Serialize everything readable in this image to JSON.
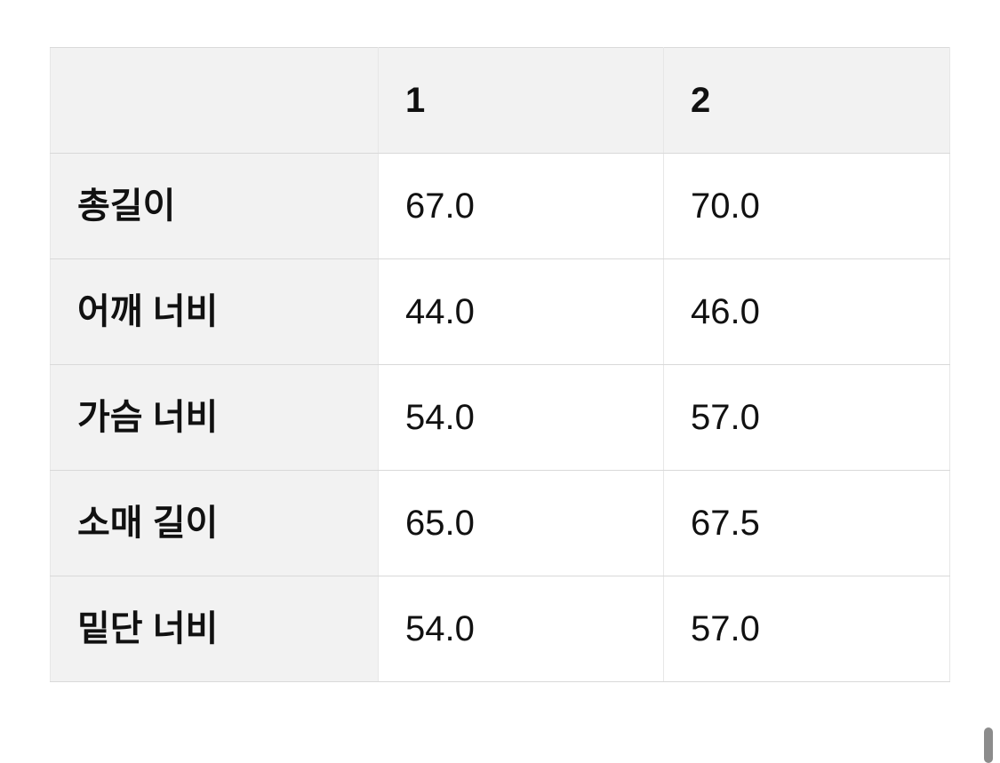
{
  "size_table": {
    "corner_label": "",
    "columns": [
      "1",
      "2"
    ],
    "rows": [
      {
        "label": "총길이",
        "values": [
          "67.0",
          "70.0"
        ]
      },
      {
        "label": "어깨 너비",
        "values": [
          "44.0",
          "46.0"
        ]
      },
      {
        "label": "가슴 너비",
        "values": [
          "54.0",
          "57.0"
        ]
      },
      {
        "label": "소매 길이",
        "values": [
          "65.0",
          "67.5"
        ]
      },
      {
        "label": "밑단 너비",
        "values": [
          "54.0",
          "57.0"
        ]
      }
    ],
    "header_bg": "#f2f2f2",
    "row_header_bg": "#f2f2f2",
    "cell_bg": "#ffffff",
    "horizontal_border_color": "#d9d9d9",
    "vertical_border_color": "#e7e7e7",
    "text_color": "#111111"
  },
  "scrollbar": {
    "thumb_color": "#8c8c8c"
  }
}
